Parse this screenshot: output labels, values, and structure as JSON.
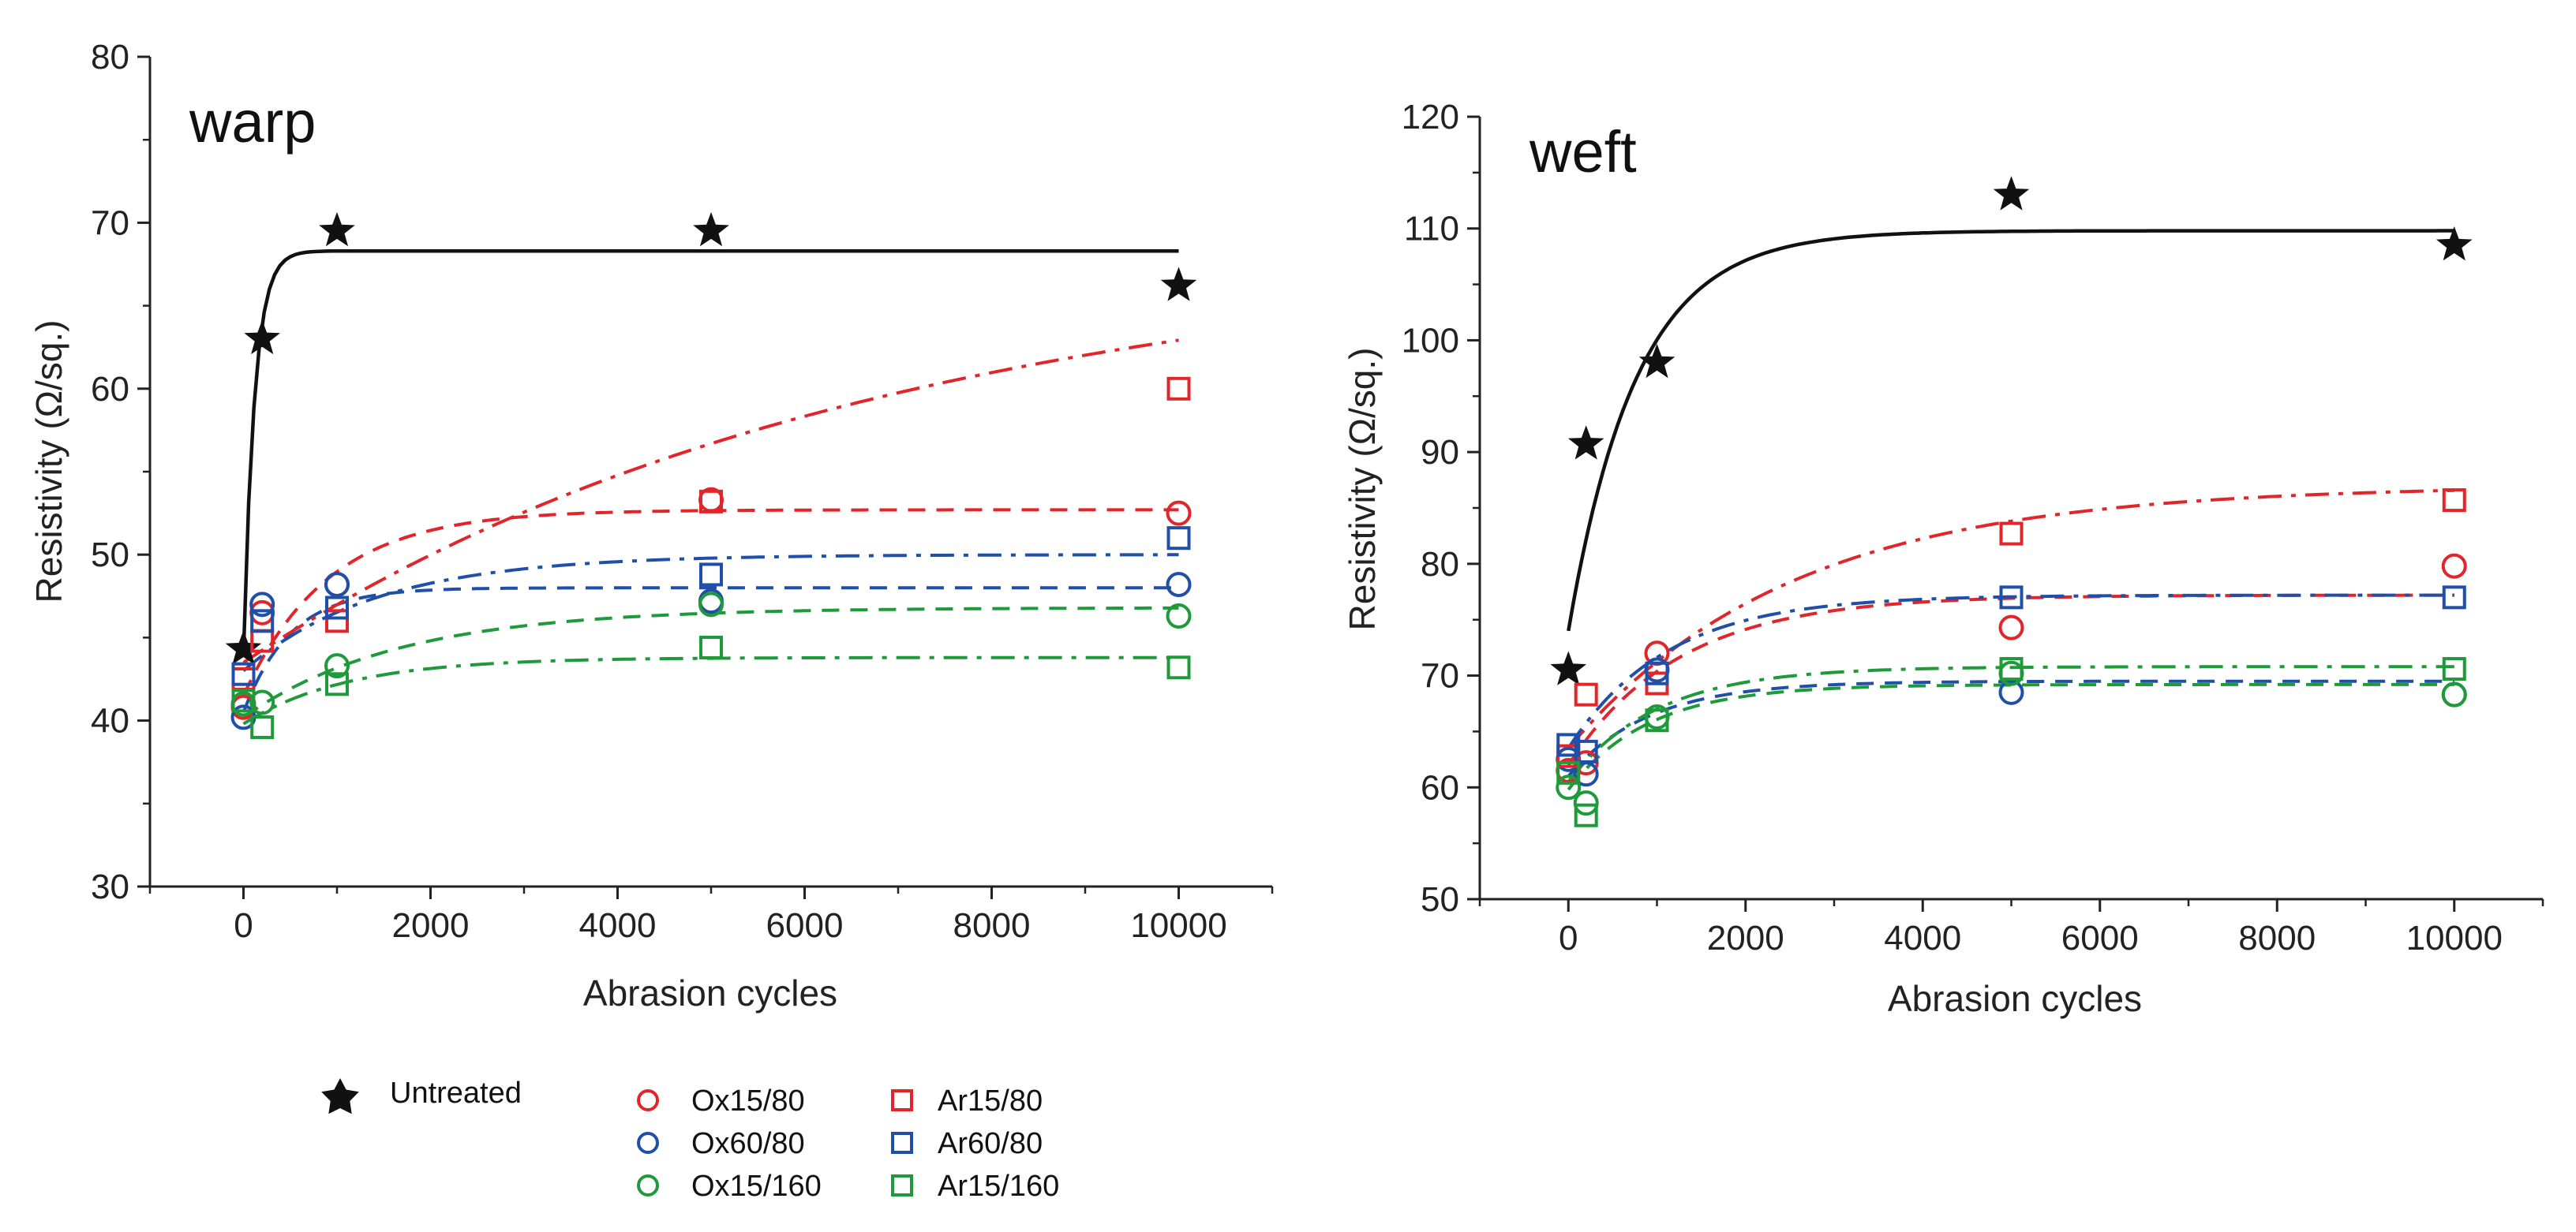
{
  "figure": {
    "legend": {
      "untreated": "Untreated",
      "ox15_80": "Ox15/80",
      "ox60_80": "Ox60/80",
      "ox15_160": "Ox15/160",
      "ar15_80": "Ar15/80",
      "ar60_80": "Ar60/80",
      "ar15_160": "Ar15/160"
    }
  },
  "chart_data": [
    {
      "id": "warp",
      "type": "scatter",
      "title": "warp",
      "xlabel": "Abrasion cycles",
      "ylabel": "Resistivity (Ω/sq.)",
      "xlim": [
        -1000,
        11000
      ],
      "ylim": [
        30,
        80
      ],
      "xticks": [
        0,
        2000,
        4000,
        6000,
        8000,
        10000
      ],
      "yticks": [
        30,
        40,
        50,
        60,
        70,
        80
      ],
      "series": [
        {
          "name": "Untreated",
          "key": "untreated",
          "marker": "star",
          "color": "#111111",
          "dash": "solid",
          "points": [
            [
              0,
              44.3
            ],
            [
              200,
              63
            ],
            [
              1000,
              69.5
            ],
            [
              5000,
              69.5
            ],
            [
              10000,
              66.2
            ]
          ],
          "fit": {
            "a": 44,
            "b": 24.3,
            "k": 0.0085,
            "xmax": 10000
          }
        },
        {
          "name": "Ox15/80",
          "key": "ox15_80",
          "marker": "circle",
          "color": "#e0262b",
          "dash": "dash",
          "points": [
            [
              0,
              40.8
            ],
            [
              200,
              46.5
            ],
            [
              1000,
              48.2
            ],
            [
              5000,
              53.3
            ],
            [
              10000,
              52.5
            ]
          ],
          "fit": {
            "a": 41.5,
            "b": 11.2,
            "k": 0.0011,
            "xmax": 10000
          }
        },
        {
          "name": "Ox60/80",
          "key": "ox60_80",
          "marker": "circle",
          "color": "#1f4fa8",
          "dash": "dash",
          "points": [
            [
              0,
              40.2
            ],
            [
              200,
              47
            ],
            [
              1000,
              48.2
            ],
            [
              5000,
              47.2
            ],
            [
              10000,
              48.2
            ]
          ],
          "fit": {
            "a": 40.5,
            "b": 7.5,
            "k": 0.002,
            "xmax": 10000
          }
        },
        {
          "name": "Ox15/160",
          "key": "ox15_160",
          "marker": "circle",
          "color": "#1f9a3a",
          "dash": "dash",
          "points": [
            [
              0,
              41
            ],
            [
              200,
              41.1
            ],
            [
              1000,
              43.3
            ],
            [
              5000,
              47
            ],
            [
              10000,
              46.3
            ]
          ],
          "fit": {
            "a": 40.2,
            "b": 6.6,
            "k": 0.0006,
            "xmax": 10000
          }
        },
        {
          "name": "Ar15/80",
          "key": "ar15_80",
          "marker": "square",
          "color": "#e0262b",
          "dash": "dashdot",
          "points": [
            [
              0,
              42.5
            ],
            [
              200,
              44.8
            ],
            [
              1000,
              46
            ],
            [
              5000,
              53.2
            ],
            [
              10000,
              60
            ]
          ],
          "fit": {
            "a": 43.5,
            "b": 25,
            "k": 0.00015,
            "xmax": 10000
          }
        },
        {
          "name": "Ar60/80",
          "key": "ar60_80",
          "marker": "square",
          "color": "#1f4fa8",
          "dash": "dashdot",
          "points": [
            [
              0,
              42.8
            ],
            [
              200,
              46
            ],
            [
              1000,
              46.8
            ],
            [
              5000,
              48.8
            ],
            [
              10000,
              51
            ]
          ],
          "fit": {
            "a": 43,
            "b": 7,
            "k": 0.0007,
            "xmax": 10000
          }
        },
        {
          "name": "Ar15/160",
          "key": "ar15_160",
          "marker": "square",
          "color": "#1f9a3a",
          "dash": "dashdot",
          "points": [
            [
              0,
              41.2
            ],
            [
              200,
              39.6
            ],
            [
              1000,
              42.2
            ],
            [
              5000,
              44.4
            ],
            [
              10000,
              43.2
            ]
          ],
          "fit": {
            "a": 39.8,
            "b": 4,
            "k": 0.0009,
            "xmax": 10000
          }
        }
      ]
    },
    {
      "id": "weft",
      "type": "scatter",
      "title": "weft",
      "xlabel": "Abrasion cycles",
      "ylabel": "Resistivity (Ω/sq.)",
      "xlim": [
        -1000,
        11000
      ],
      "ylim": [
        50,
        120
      ],
      "xticks": [
        0,
        2000,
        4000,
        6000,
        8000,
        10000
      ],
      "yticks": [
        50,
        60,
        70,
        80,
        90,
        100,
        110,
        120
      ],
      "series": [
        {
          "name": "Untreated",
          "key": "untreated",
          "marker": "star",
          "color": "#111111",
          "dash": "solid",
          "points": [
            [
              0,
              70.5
            ],
            [
              200,
              90.7
            ],
            [
              1000,
              98
            ],
            [
              5000,
              113
            ],
            [
              10000,
              108.5
            ]
          ],
          "fit": {
            "a": 74,
            "b": 35.8,
            "k": 0.0013,
            "xmax": 10000
          }
        },
        {
          "name": "Ox15/80",
          "key": "ox15_80",
          "marker": "circle",
          "color": "#e0262b",
          "dash": "dash",
          "points": [
            [
              0,
              61.5
            ],
            [
              200,
              62.2
            ],
            [
              1000,
              72
            ],
            [
              5000,
              74.3
            ],
            [
              10000,
              79.8
            ]
          ],
          "fit": {
            "a": 62,
            "b": 15.2,
            "k": 0.0008,
            "xmax": 10000
          }
        },
        {
          "name": "Ox60/80",
          "key": "ox60_80",
          "marker": "circle",
          "color": "#1f4fa8",
          "dash": "dash",
          "points": [
            [
              0,
              62.5
            ],
            [
              200,
              61.2
            ],
            [
              1000,
              70.5
            ],
            [
              5000,
              68.5
            ],
            [
              10000,
              68.3
            ]
          ],
          "fit": {
            "a": 61,
            "b": 8.5,
            "k": 0.0011,
            "xmax": 10000
          }
        },
        {
          "name": "Ox15/160",
          "key": "ox15_160",
          "marker": "circle",
          "color": "#1f9a3a",
          "dash": "dash",
          "points": [
            [
              0,
              60
            ],
            [
              200,
              58.6
            ],
            [
              1000,
              66.3
            ],
            [
              5000,
              70.2
            ],
            [
              10000,
              68.3
            ]
          ],
          "fit": {
            "a": 59.8,
            "b": 9.4,
            "k": 0.0011,
            "xmax": 10000
          }
        },
        {
          "name": "Ar15/80",
          "key": "ar15_80",
          "marker": "square",
          "color": "#e0262b",
          "dash": "dashdot",
          "points": [
            [
              0,
              62.8
            ],
            [
              200,
              68.3
            ],
            [
              1000,
              69.3
            ],
            [
              5000,
              82.7
            ],
            [
              10000,
              85.7
            ]
          ],
          "fit": {
            "a": 63.5,
            "b": 23.5,
            "k": 0.0004,
            "xmax": 10000
          }
        },
        {
          "name": "Ar60/80",
          "key": "ar60_80",
          "marker": "square",
          "color": "#1f4fa8",
          "dash": "dashdot",
          "points": [
            [
              0,
              63.8
            ],
            [
              200,
              63.2
            ],
            [
              1000,
              70.2
            ],
            [
              5000,
              77
            ],
            [
              10000,
              77
            ]
          ],
          "fit": {
            "a": 63.5,
            "b": 13.7,
            "k": 0.0009,
            "xmax": 10000
          }
        },
        {
          "name": "Ar15/160",
          "key": "ar15_160",
          "marker": "square",
          "color": "#1f9a3a",
          "dash": "dashdot",
          "points": [
            [
              0,
              61.3
            ],
            [
              200,
              57.5
            ],
            [
              1000,
              66
            ],
            [
              5000,
              70.6
            ],
            [
              10000,
              70.6
            ]
          ],
          "fit": {
            "a": 60.5,
            "b": 10.3,
            "k": 0.001,
            "xmax": 10000
          }
        }
      ]
    }
  ]
}
